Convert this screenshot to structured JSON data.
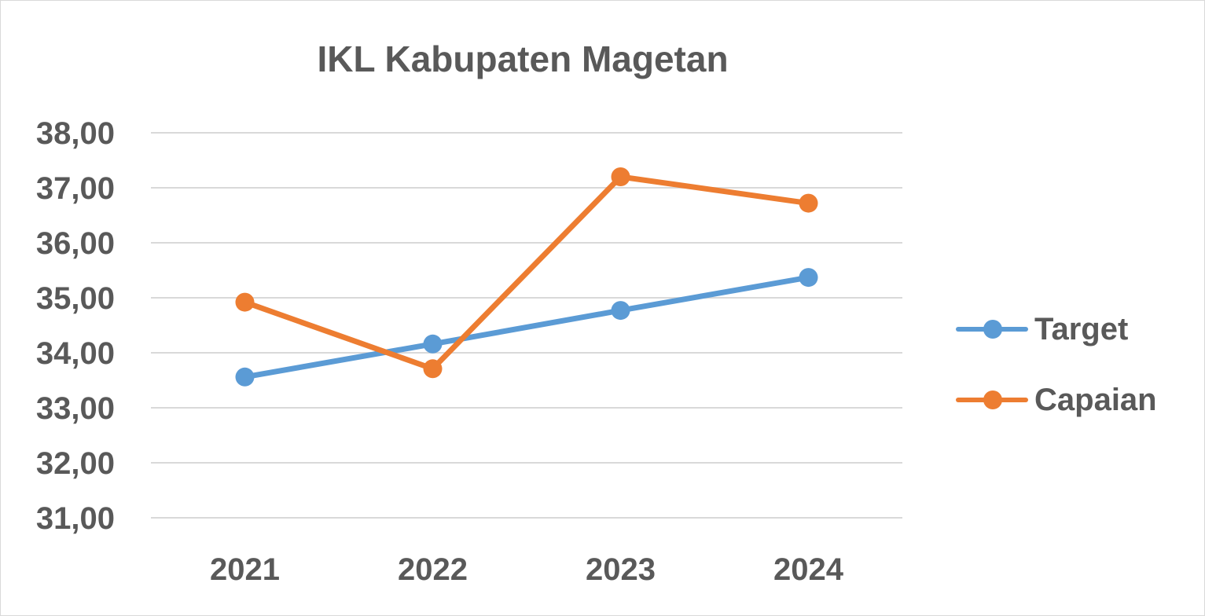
{
  "colors": {
    "background": "#ffffff",
    "border": "#d9d9d9",
    "gridline": "#d9d9d9",
    "text": "#595959",
    "target": "#5b9bd5",
    "capaian": "#ed7d31"
  },
  "chart_data": {
    "type": "line",
    "title": "IKL Kabupaten Magetan",
    "xlabel": "",
    "ylabel": "",
    "categories": [
      "2021",
      "2022",
      "2023",
      "2024"
    ],
    "series": [
      {
        "name": "Target",
        "color": "#5b9bd5",
        "values": [
          33.56,
          34.16,
          34.77,
          35.37
        ]
      },
      {
        "name": "Capaian",
        "color": "#ed7d31",
        "values": [
          34.92,
          33.71,
          37.2,
          36.72
        ]
      }
    ],
    "ylim": [
      31,
      38
    ],
    "yticks": [
      31,
      32,
      33,
      34,
      35,
      36,
      37,
      38
    ],
    "ytick_labels": [
      "31,00",
      "32,00",
      "33,00",
      "34,00",
      "35,00",
      "36,00",
      "37,00",
      "38,00"
    ],
    "grid": true,
    "legend": "right",
    "marker": "circle"
  }
}
